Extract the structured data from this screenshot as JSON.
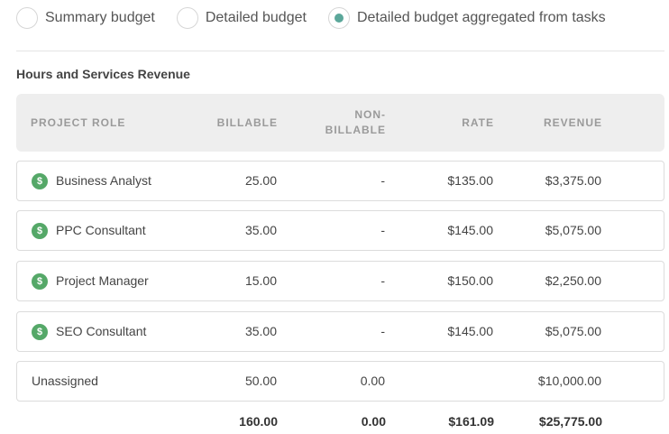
{
  "budget_options": [
    {
      "label": "Summary budget",
      "checked": false
    },
    {
      "label": "Detailed budget",
      "checked": false
    },
    {
      "label": "Detailed budget aggregated from tasks",
      "checked": true
    }
  ],
  "section_title": "Hours and Services Revenue",
  "table": {
    "headers": {
      "role": "PROJECT ROLE",
      "billable": "BILLABLE",
      "non_billable_1": "NON-",
      "non_billable_2": "BILLABLE",
      "rate": "RATE",
      "revenue": "REVENUE"
    },
    "rows": [
      {
        "role": "Business Analyst",
        "billable": "25.00",
        "non_billable": "-",
        "rate": "$135.00",
        "revenue": "$3,375.00",
        "icon": "dollar-icon"
      },
      {
        "role": "PPC Consultant",
        "billable": "35.00",
        "non_billable": "-",
        "rate": "$145.00",
        "revenue": "$5,075.00",
        "icon": "dollar-icon"
      },
      {
        "role": "Project Manager",
        "billable": "15.00",
        "non_billable": "-",
        "rate": "$150.00",
        "revenue": "$2,250.00",
        "icon": "dollar-icon"
      },
      {
        "role": "SEO Consultant",
        "billable": "35.00",
        "non_billable": "-",
        "rate": "$145.00",
        "revenue": "$5,075.00",
        "icon": "dollar-icon"
      },
      {
        "role": "Unassigned",
        "billable": "50.00",
        "non_billable": "0.00",
        "rate": "",
        "revenue": "$10,000.00",
        "icon": ""
      }
    ],
    "totals": {
      "billable": "160.00",
      "non_billable": "0.00",
      "rate": "$161.09",
      "revenue": "$25,775.00"
    }
  },
  "colors": {
    "accent": "#5ba79a",
    "icon_green": "#55a868",
    "header_bg": "#eeeeee"
  }
}
